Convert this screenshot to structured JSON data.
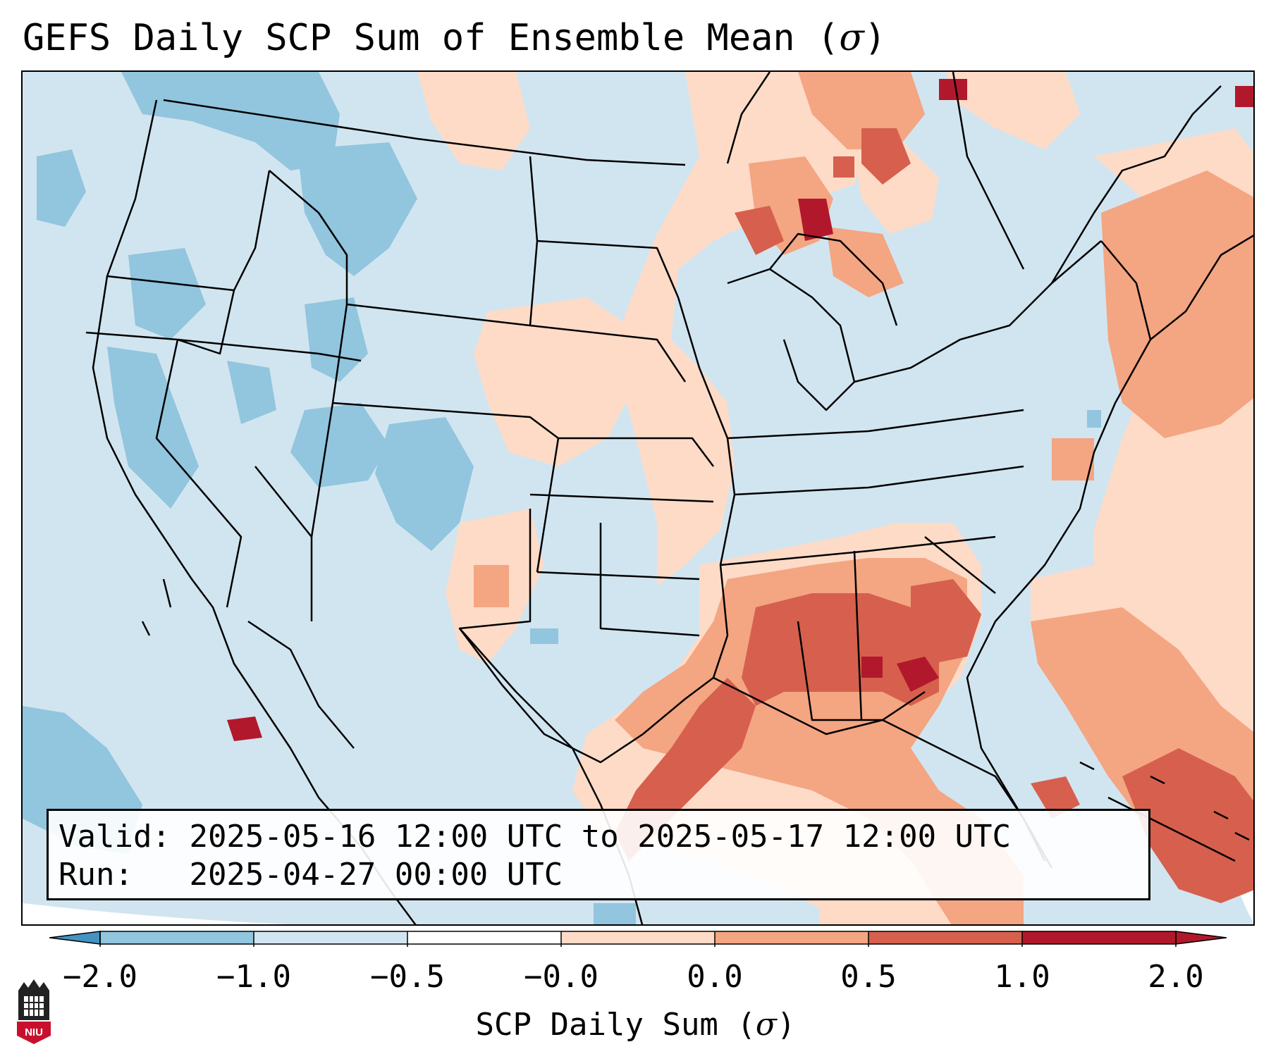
{
  "title": {
    "prefix": "GEFS Daily SCP Sum of Ensemble Mean (",
    "symbol": "σ",
    "suffix": ")"
  },
  "info": {
    "valid_label": "Valid:",
    "valid_value": "2025-05-16 12:00 UTC to 2025-05-17 12:00 UTC",
    "run_label": "Run:",
    "run_value": "2025-04-27 00:00 UTC"
  },
  "colorbar": {
    "label_prefix": "SCP Daily Sum (",
    "label_symbol": "σ",
    "label_suffix": ")",
    "ticks": [
      "−2.0",
      "−1.0",
      "−0.5",
      "−0.0",
      "0.0",
      "0.5",
      "1.0",
      "2.0"
    ],
    "colors": [
      "#4393c3",
      "#92c5de",
      "#d1e5f0",
      "#ffffff",
      "#fddbc7",
      "#f4a582",
      "#d6604d",
      "#b2182b"
    ],
    "extend": "both"
  },
  "logo": {
    "text": "NIU",
    "color": "#c8102e"
  },
  "map": {
    "region": "CONUS",
    "background_color": "#d1e5f0"
  }
}
